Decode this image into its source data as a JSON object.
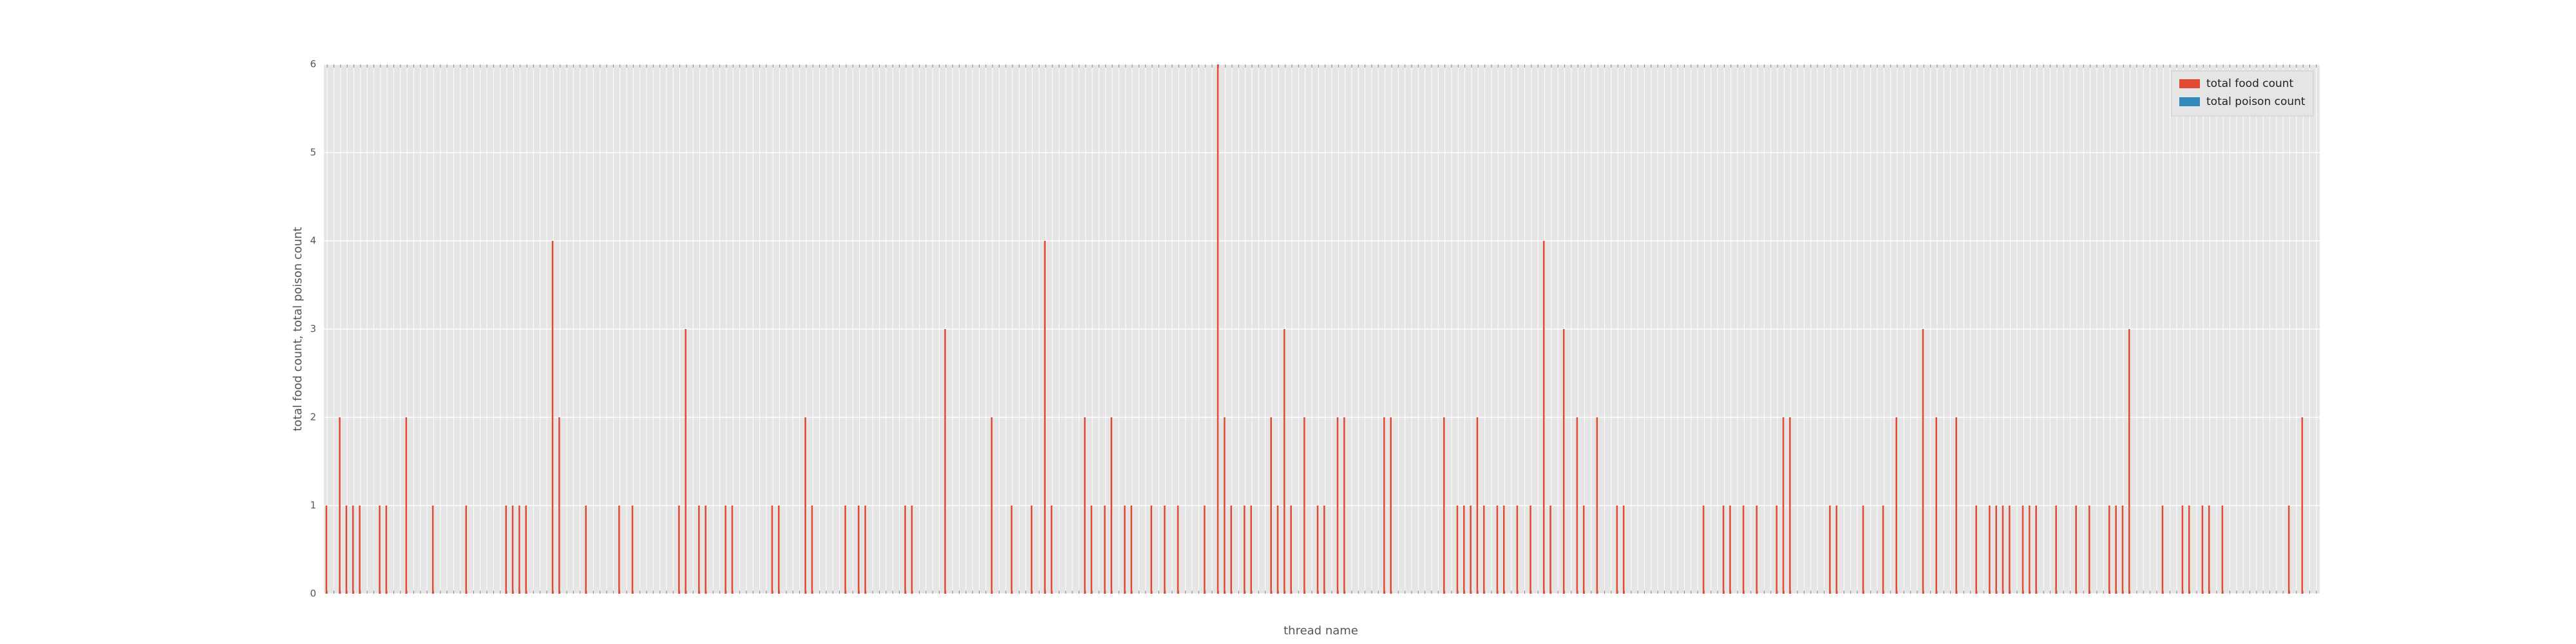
{
  "chart_data": {
    "type": "bar",
    "xlabel": "thread name",
    "ylabel": "total food count, total poison count",
    "categories": [
      null,
      null,
      null,
      null,
      null,
      null,
      null,
      null,
      null,
      null,
      null,
      null,
      null,
      null,
      null,
      null,
      null,
      null,
      null,
      null,
      null,
      null,
      null,
      null,
      null,
      null,
      null,
      null,
      null,
      null,
      null,
      null,
      null,
      null,
      null,
      null,
      null,
      null,
      null,
      null,
      null,
      null,
      null,
      null,
      null,
      null,
      null,
      null,
      null,
      null,
      null,
      null,
      null,
      null,
      null,
      null,
      null,
      null,
      null,
      null,
      null,
      null,
      null,
      null,
      null,
      null,
      null,
      null,
      null,
      null,
      null,
      null,
      null,
      null,
      null,
      null,
      null,
      null,
      null,
      null,
      null,
      null,
      null,
      null,
      null,
      null,
      null,
      null,
      null,
      null,
      null,
      null,
      null,
      null,
      null,
      null,
      null,
      null,
      null,
      null,
      null,
      null,
      null,
      null,
      null,
      null,
      null,
      null,
      null,
      null,
      null,
      null,
      null,
      null,
      null,
      null,
      null,
      null,
      null,
      null,
      null,
      null,
      null,
      null,
      null,
      null,
      null,
      null,
      null,
      null,
      null,
      null,
      null,
      null,
      null,
      null,
      null,
      null,
      null,
      null,
      null,
      null,
      null,
      null,
      null,
      null,
      null,
      null,
      null,
      null,
      null,
      null,
      null,
      null,
      null,
      null,
      null,
      null,
      null,
      null,
      null,
      null,
      null,
      null,
      null,
      null,
      null,
      null,
      null,
      null,
      null,
      null,
      null,
      null,
      null,
      null,
      null,
      null,
      null,
      null,
      null,
      null,
      null,
      null,
      null,
      null,
      null,
      null,
      null,
      null,
      null,
      null,
      null,
      null,
      null,
      null,
      null,
      null,
      null,
      null,
      null,
      null,
      null,
      null,
      null,
      null,
      null,
      null,
      null,
      null,
      null,
      null,
      null,
      null,
      null,
      null,
      null,
      null,
      null,
      null,
      null,
      null,
      null,
      null,
      null,
      null,
      null,
      null,
      null,
      null,
      null,
      null,
      null,
      null,
      null,
      null,
      null,
      null,
      null,
      null,
      null,
      null,
      null,
      null,
      null,
      null,
      null,
      null,
      null,
      null,
      null,
      null,
      null,
      null,
      null,
      null,
      null,
      null,
      null,
      null,
      null,
      null,
      null,
      null,
      null,
      null,
      null,
      null,
      null,
      null,
      null,
      null,
      null,
      null,
      null,
      null,
      null,
      null,
      null,
      null,
      null,
      null,
      null,
      null,
      null,
      null,
      null,
      null,
      null,
      null,
      null,
      null,
      null,
      null,
      null,
      null,
      null,
      null,
      null,
      null
    ],
    "series": [
      {
        "name": "total food count",
        "color": "#e24a33",
        "values": [
          1,
          0,
          2,
          1,
          1,
          1,
          0,
          0,
          1,
          1,
          0,
          0,
          2,
          0,
          0,
          0,
          1,
          0,
          0,
          0,
          0,
          1,
          0,
          0,
          0,
          0,
          0,
          1,
          1,
          1,
          1,
          0,
          0,
          0,
          4,
          2,
          0,
          0,
          0,
          1,
          0,
          0,
          0,
          0,
          1,
          0,
          1,
          0,
          0,
          0,
          0,
          0,
          0,
          1,
          3,
          0,
          1,
          1,
          0,
          0,
          1,
          1,
          0,
          0,
          0,
          0,
          0,
          1,
          1,
          0,
          0,
          0,
          2,
          1,
          0,
          0,
          0,
          0,
          1,
          0,
          1,
          1,
          0,
          0,
          0,
          0,
          0,
          1,
          1,
          0,
          0,
          0,
          0,
          3,
          0,
          0,
          0,
          0,
          0,
          0,
          2,
          0,
          0,
          1,
          0,
          0,
          1,
          0,
          4,
          1,
          0,
          0,
          0,
          0,
          2,
          1,
          0,
          1,
          2,
          0,
          1,
          1,
          0,
          0,
          1,
          0,
          1,
          0,
          1,
          0,
          0,
          0,
          1,
          0,
          6,
          2,
          1,
          0,
          1,
          1,
          0,
          0,
          2,
          1,
          3,
          1,
          0,
          2,
          0,
          1,
          1,
          0,
          2,
          2,
          0,
          0,
          0,
          0,
          0,
          2,
          2,
          0,
          0,
          0,
          0,
          0,
          0,
          0,
          2,
          0,
          1,
          1,
          1,
          2,
          1,
          0,
          1,
          1,
          0,
          1,
          0,
          1,
          0,
          4,
          1,
          0,
          3,
          0,
          2,
          1,
          0,
          2,
          0,
          0,
          1,
          1,
          0,
          0,
          0,
          0,
          0,
          0,
          0,
          0,
          0,
          0,
          0,
          1,
          0,
          0,
          1,
          1,
          0,
          1,
          0,
          1,
          0,
          0,
          1,
          2,
          2,
          0,
          0,
          0,
          0,
          0,
          1,
          1,
          0,
          0,
          0,
          1,
          0,
          0,
          1,
          0,
          2,
          0,
          0,
          0,
          3,
          0,
          2,
          0,
          0,
          2,
          0,
          0,
          1,
          0,
          1,
          1,
          1,
          1,
          0,
          1,
          1,
          1,
          0,
          0,
          1,
          0,
          0,
          1,
          0,
          1,
          0,
          0,
          1,
          1,
          1,
          3,
          0,
          0,
          0,
          0,
          1,
          0,
          0,
          1,
          1,
          0,
          1,
          1,
          0,
          1,
          0,
          0,
          0,
          0,
          0,
          0,
          0,
          0,
          0,
          1,
          0,
          2,
          0,
          0
        ]
      },
      {
        "name": "total poison count",
        "color": "#348abd",
        "values": [
          0,
          0,
          0,
          0,
          0,
          0,
          0,
          0,
          0,
          0,
          0,
          0,
          0,
          0,
          0,
          0,
          0,
          0,
          0,
          0,
          0,
          0,
          0,
          0,
          0,
          0,
          0,
          0,
          0,
          0,
          0,
          0,
          0,
          0,
          0,
          0,
          0,
          0,
          0,
          0,
          0,
          0,
          0,
          0,
          0,
          0,
          0,
          0,
          0,
          0,
          0,
          0,
          0,
          0,
          0,
          0,
          0,
          0,
          0,
          0,
          0,
          0,
          0,
          0,
          0,
          0,
          0,
          0,
          0,
          0,
          0,
          0,
          0,
          0,
          0,
          0,
          0,
          0,
          0,
          0,
          0,
          0,
          0,
          0,
          0,
          0,
          0,
          0,
          0,
          0,
          0,
          0,
          0,
          0,
          0,
          0,
          0,
          0,
          0,
          0,
          0,
          0,
          0,
          0,
          0,
          0,
          0,
          0,
          0,
          0,
          0,
          0,
          0,
          0,
          0,
          0,
          0,
          0,
          0,
          0,
          0,
          0,
          0,
          0,
          0,
          0,
          0,
          0,
          0,
          0,
          0,
          0,
          0,
          0,
          0,
          0,
          0,
          0,
          0,
          0,
          0,
          0,
          0,
          0,
          0,
          0,
          0,
          0,
          0,
          0,
          0,
          0,
          0,
          0,
          0,
          0,
          0,
          0,
          0,
          0,
          0,
          0,
          0,
          0,
          0,
          0,
          0,
          0,
          0,
          0,
          0,
          0,
          0,
          0,
          0,
          0,
          0,
          0,
          0,
          0,
          0,
          0,
          0,
          0,
          0,
          0,
          0,
          0,
          0,
          0,
          0,
          0,
          0,
          0,
          0,
          0,
          0,
          0,
          0,
          0,
          0,
          0,
          0,
          0,
          0,
          0,
          0,
          0,
          0,
          0,
          0,
          0,
          0,
          0,
          0,
          0,
          0,
          0,
          0,
          0,
          0,
          0,
          0,
          0,
          0,
          0,
          0,
          0,
          0,
          0,
          0,
          0,
          0,
          0,
          0,
          0,
          0,
          0,
          0,
          0,
          0,
          0,
          0,
          0,
          0,
          0,
          0,
          0,
          0,
          0,
          0,
          0,
          0,
          0,
          0,
          0,
          0,
          0,
          0,
          0,
          0,
          0,
          0,
          0,
          0,
          0,
          0,
          0,
          0,
          0,
          0,
          0,
          0,
          0,
          0,
          0,
          0,
          0,
          0,
          0,
          0,
          0,
          0,
          0,
          0,
          0,
          0,
          0,
          0,
          0,
          0,
          0,
          0,
          0,
          0,
          0,
          0,
          0,
          0,
          0
        ]
      }
    ],
    "ylim": [
      0,
      6
    ],
    "yticks": [
      0,
      1,
      2,
      3,
      4,
      5,
      6
    ],
    "grid": true,
    "legend": "upper right"
  }
}
